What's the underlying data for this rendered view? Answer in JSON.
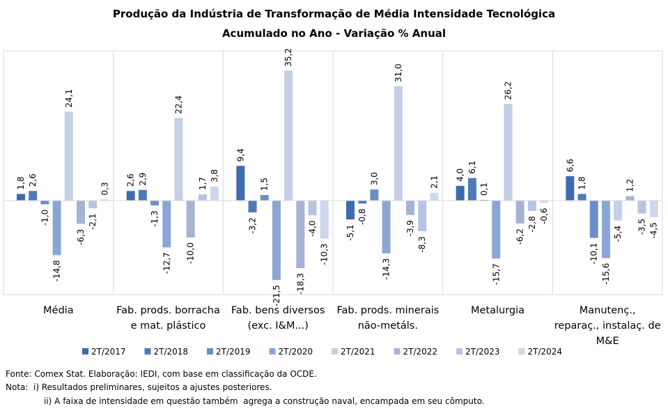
{
  "chart_data": {
    "type": "bar",
    "title": [
      "Produção da Indústria de Transformação de Média Intensidade Tecnológica",
      "Acumulado no Ano - Variação % Anual"
    ],
    "groups": [
      [
        "Média"
      ],
      [
        "Fab. prods. borracha",
        "e mat. plástico"
      ],
      [
        "Fab. bens diversos",
        "(exc. I&M...)"
      ],
      [
        "Fab. prods. minerais",
        "não-metáls."
      ],
      [
        "Metalurgia"
      ],
      [
        "Manutenç.,",
        "reparaç., instalaç. de",
        "M&E"
      ]
    ],
    "series": [
      {
        "name": "2T/2017",
        "color": "#3e6bae",
        "values": [
          1.8,
          2.6,
          9.4,
          -5.1,
          4.0,
          6.6
        ]
      },
      {
        "name": "2T/2018",
        "color": "#4f79b9",
        "values": [
          2.6,
          2.9,
          -3.2,
          -0.8,
          6.1,
          1.8
        ]
      },
      {
        "name": "2T/2019",
        "color": "#6a8dc6",
        "values": [
          -1.0,
          -1.3,
          1.5,
          3.0,
          0.1,
          -10.1
        ]
      },
      {
        "name": "2T/2020",
        "color": "#8ca6d4",
        "values": [
          -14.8,
          -12.7,
          -21.5,
          -14.3,
          -15.7,
          -15.6
        ]
      },
      {
        "name": "2T/2021",
        "color": "#c4d0e6",
        "values": [
          24.1,
          22.4,
          35.2,
          31.0,
          26.2,
          -5.4
        ]
      },
      {
        "name": "2T/2022",
        "color": "#a4b4d2",
        "values": [
          -6.3,
          -10.0,
          -18.3,
          -3.9,
          -6.2,
          1.2
        ]
      },
      {
        "name": "2T/2023",
        "color": "#b6c4df",
        "values": [
          -2.1,
          1.7,
          -4.0,
          -8.3,
          -2.8,
          -3.5
        ]
      },
      {
        "name": "2T/2024",
        "color": "#cdd7ea",
        "values": [
          0.3,
          3.8,
          -10.3,
          2.1,
          -0.6,
          -4.5
        ]
      }
    ],
    "value_labels": [
      [
        "1,8",
        "2,6",
        "-1,0",
        "-14,8",
        "24,1",
        "-6,3",
        "-2,1",
        "0,3"
      ],
      [
        "2,6",
        "2,9",
        "-1,3",
        "-12,7",
        "22,4",
        "-10,0",
        "1,7",
        "3,8"
      ],
      [
        "9,4",
        "-3,2",
        "1,5",
        "-21,5",
        "35,2",
        "-18,3",
        "-4,0",
        "-10,3"
      ],
      [
        "-5,1",
        "-0,8",
        "3,0",
        "-14,3",
        "31,0",
        "-3,9",
        "-8,3",
        "2,1"
      ],
      [
        "4,0",
        "6,1",
        "0,1",
        "-15,7",
        "26,2",
        "-6,2",
        "-2,8",
        "-0,6"
      ],
      [
        "6,6",
        "1,8",
        "-10,1",
        "-15,6",
        "-5,4",
        "1,2",
        "-3,5",
        "-4,5"
      ]
    ],
    "ylim": [
      -27,
      40
    ],
    "grid": false,
    "legend_position": "bottom"
  },
  "footnotes": {
    "source": "Fonte: Comex Stat. Elaboração: IEDI, com base em classificação da OCDE.",
    "note1": "Nota:  i) Resultados preliminares, sujeitos a ajustes posteriores.",
    "note2": "ii) A faixa de intensidade em questão também  agrega a construção naval, encampada em seu cômputo."
  }
}
